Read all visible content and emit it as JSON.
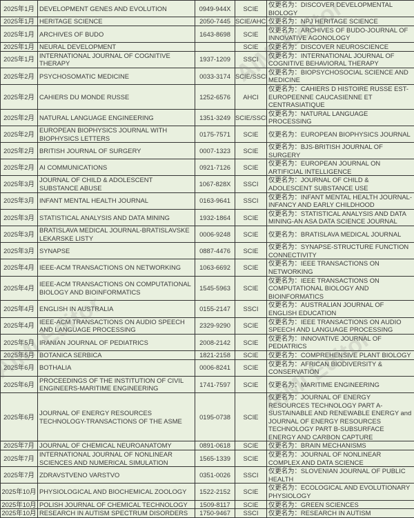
{
  "prefix": "仅更名为：",
  "rows": [
    {
      "date": "2025年1月",
      "journal": "DEVELOPMENT GENES AND EVOLUTION",
      "issn": "0949-944X",
      "index": "SCIE",
      "note": "仅更名为：DISCOVER DEVELOPMENTAL BIOLOGY"
    },
    {
      "date": "2025年1月",
      "journal": "HERITAGE SCIENCE",
      "issn": "2050-7445",
      "index": "SCIE/AHCI",
      "note": "仅更名为：NPJ HERITAGE SCIENCE"
    },
    {
      "date": "2025年1月",
      "journal": "ARCHIVES OF BUDO",
      "issn": "1643-8698",
      "index": "SCIE",
      "note": "仅更名为：ARCHIVES OF BUDO-JOURNAL OF INNOVATIVE AGONOLOGY"
    },
    {
      "date": "2025年1月",
      "journal": "NEURAL DEVELOPMENT",
      "issn": "",
      "index": "SCIE",
      "note": "仅更名为：DISCOVER NEUROSCIENCE"
    },
    {
      "date": "2025年1月",
      "journal": "INTERNATIONAL JOURNAL OF COGNITIVE THERAPY",
      "issn": "1937-1209",
      "index": "SSCI",
      "note": "仅更名为：INTERNATIONAL JOURNAL OF COGNITIVE BEHAVIORAL THERAPY"
    },
    {
      "date": "2025年2月",
      "journal": "PSYCHOSOMATIC MEDICINE",
      "issn": "0033-3174",
      "index": "SCIE/SSCI",
      "note": "仅更名为：BIOPSYCHOSOCIAL SCIENCE AND MEDICINE"
    },
    {
      "date": "2025年2月",
      "journal": "CAHIERS DU MONDE RUSSE",
      "issn": "1252-6576",
      "index": "AHCI",
      "note": "仅更名为：CAHIERS D HISTOIRE RUSSE EST-EUROPEENNE CAUCASIENNE ET CENTRASIATIQUE"
    },
    {
      "date": "2025年2月",
      "journal": "NATURAL LANGUAGE ENGINEERING",
      "issn": "1351-3249",
      "index": "SCIE/SSCI",
      "note": "仅更名为：NATURAL LANGUAGE PROCESSING"
    },
    {
      "date": "2025年2月",
      "journal": "EUROPEAN BIOPHYSICS JOURNAL WITH BIOPHYSICS LETTERS",
      "issn": "0175-7571",
      "index": "SCIE",
      "note": "仅更名为：EUROPEAN BIOPHYSICS JOURNAL"
    },
    {
      "date": "2025年2月",
      "journal": "BRITISH JOURNAL OF SURGERY",
      "issn": "0007-1323",
      "index": "SCIE",
      "note": "仅更名为：BJS-BRITISH JOURNAL OF SURGERY"
    },
    {
      "date": "2025年2月",
      "journal": "AI COMMUNICATIONS",
      "issn": "0921-7126",
      "index": "SCIE",
      "note": "仅更名为：EUROPEAN JOURNAL ON ARTIFICIAL INTELLIGENCE"
    },
    {
      "date": "2025年3月",
      "journal": "JOURNAL OF CHILD & ADOLESCENT SUBSTANCE ABUSE",
      "issn": "1067-828X",
      "index": "SSCI",
      "note": "仅更名为：JOURNAL OF CHILD & ADOLESCENT SUBSTANCE USE"
    },
    {
      "date": "2025年3月",
      "journal": "INFANT MENTAL HEALTH JOURNAL",
      "issn": "0163-9641",
      "index": "SSCI",
      "note": "仅更名为：INFANT MENTAL HEALTH JOURNAL-INFANCY AND EARLY CHILDHOOD"
    },
    {
      "date": "2025年3月",
      "journal": "STATISTICAL ANALYSIS AND DATA MINING",
      "issn": "1932-1864",
      "index": "SCIE",
      "note": "仅更名为：STATISTICAL ANALYSIS AND DATA MINING-AN ASA DATA SCIENCE JOURNAL"
    },
    {
      "date": "2025年3月",
      "journal": "BRATISLAVA MEDICAL JOURNAL-BRATISLAVSKE LEKARSKE LISTY",
      "issn": "0006-9248",
      "index": "SCIE",
      "note": "仅更名为：BRATISLAVA MEDICAL JOURNAL"
    },
    {
      "date": "2025年3月",
      "journal": "SYNAPSE",
      "issn": "0887-4476",
      "index": "SCIE",
      "note": "仅更名为：SYNAPSE-STRUCTURE FUNCTION CONNECTIVITY"
    },
    {
      "date": "2025年4月",
      "journal": "IEEE-ACM TRANSACTIONS ON NETWORKING",
      "issn": "1063-6692",
      "index": "SCIE",
      "note": "仅更名为：IEEE TRANSACTIONS ON NETWORKING"
    },
    {
      "date": "2025年4月",
      "journal": "IEEE-ACM TRANSACTIONS ON COMPUTATIONAL BIOLOGY AND BIOINFORMATICS",
      "issn": "1545-5963",
      "index": "SCIE",
      "note": "仅更名为：IEEE TRANSACTIONS ON COMPUTATIONAL BIOLOGY AND BIOINFORMATICS"
    },
    {
      "date": "2025年4月",
      "journal": "ENGLISH IN AUSTRALIA",
      "issn": "0155-2147",
      "index": "SSCI",
      "note": "仅更名为：AUSTRALIAN JOURNAL OF ENGLISH EDUCATION"
    },
    {
      "date": "2025年4月",
      "journal": "IEEE-ACM TRANSACTIONS ON AUDIO SPEECH AND LANGUAGE PROCESSING",
      "issn": "2329-9290",
      "index": "SCIE",
      "note": "仅更名为：IEEE TRANSACTIONS ON AUDIO SPEECH AND LANGUAGE PROCESSING"
    },
    {
      "date": "2025年5月",
      "journal": "IRANIAN JOURNAL OF PEDIATRICS",
      "issn": "2008-2142",
      "index": "SCIE",
      "note": "仅更名为：INNOVATIVE JOURNAL OF PEDIATRICS"
    },
    {
      "date": "2025年5月",
      "journal": "BOTANICA SERBICA",
      "issn": "1821-2158",
      "index": "SCIE",
      "note": "仅更名为：COMPREHENSIVE PLANT BIOLOGY"
    },
    {
      "date": "2025年6月",
      "journal": "BOTHALIA",
      "issn": "0006-8241",
      "index": "SCIE",
      "note": "仅更名为：AFRICAN BIODIVERSITY & CONSERVATION"
    },
    {
      "date": "2025年6月",
      "journal": "PROCEEDINGS OF THE INSTITUTION OF CIVIL ENGINEERS-MARITIME ENGINEERING",
      "issn": "1741-7597",
      "index": "SCIE",
      "note": "仅更名为：MARITIME ENGINEERING"
    },
    {
      "date": "2025年6月",
      "journal": "JOURNAL OF ENERGY RESOURCES TECHNOLOGY-TRANSACTIONS OF THE ASME",
      "issn": "0195-0738",
      "index": "SCIE",
      "note": "仅更名为：JOURNAL OF ENERGY RESOURCES TECHNOLOGY PART A-SUSTAINABLE AND RENEWABLE ENERGY and JOURNAL OF ENERGY RESOURCES TECHNOLOGY PART B-SUBSURFACE ENERGY AND CARBON CAPTURE"
    },
    {
      "date": "2025年7月",
      "journal": "JOURNAL OF CHEMICAL NEUROANATOMY",
      "issn": "0891-0618",
      "index": "SCIE",
      "note": "仅更名为：BRAIN MECHANISMS"
    },
    {
      "date": "2025年7月",
      "journal": "INTERNATIONAL JOURNAL OF NONLINEAR SCIENCES AND NUMERICAL SIMULATION",
      "issn": "1565-1339",
      "index": "SCIE",
      "note": "仅更名为：JOURNAL OF NONLINEAR COMPLEX AND DATA SCIENCE"
    },
    {
      "date": "2025年7月",
      "journal": "ZDRAVSTVENO VARSTVO",
      "issn": "0351-0026",
      "index": "SSCI",
      "note": "仅更名为：SLOVENIAN JOURNAL OF PUBLIC HEALTH"
    },
    {
      "date": "2025年10月",
      "journal": "PHYSIOLOGICAL AND BIOCHEMICAL ZOOLOGY",
      "issn": "1522-2152",
      "index": "SCIE",
      "note": "仅更名为：ECOLOGICAL AND EVOLUTIONARY PHYSIOLOGY"
    },
    {
      "date": "2025年10月",
      "journal": "POLISH JOURNAL OF CHEMICAL TECHNOLOGY",
      "issn": "1509-8117",
      "index": "SCIE",
      "note": "仅更名为：GREEN SCIENCES"
    },
    {
      "date": "2025年10月",
      "journal": "RESEARCH IN AUTISM SPECTRUM DISORDERS",
      "issn": "1750-9467",
      "index": "SSCI",
      "note": "仅更名为：RESEARCH IN AUTISM"
    }
  ],
  "watermark": "AiMi Editor"
}
